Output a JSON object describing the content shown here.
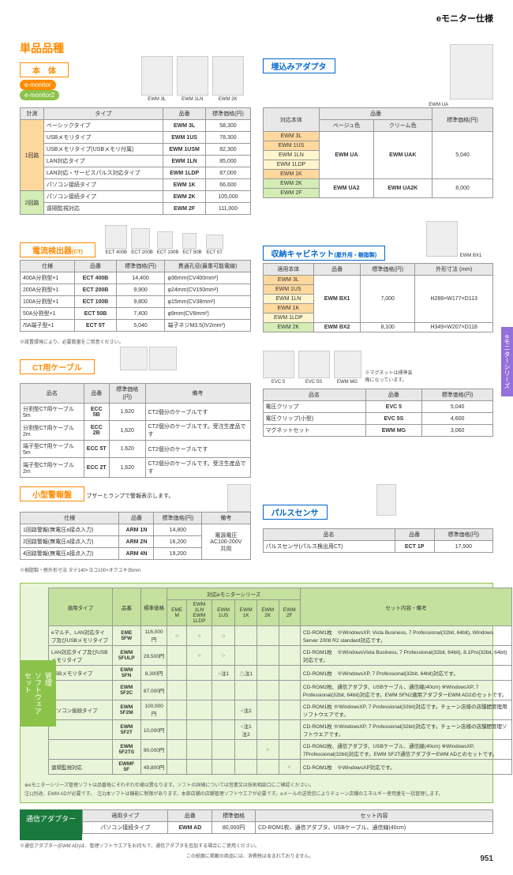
{
  "header": "eモニター仕様",
  "main_title": "単品品種",
  "honbatai": "本　体",
  "badge1": "e-monitor",
  "badge2": "e-monitor2",
  "embed_adapter": "埋込みアダプタ",
  "main_imgs": [
    "EWM 3L",
    "EWM 1LN",
    "EWM 2K"
  ],
  "adapter_img": "EWM UA",
  "main_table": {
    "headers": [
      "計測",
      "タイプ",
      "品番",
      "標準価格(円)"
    ],
    "rows": [
      [
        "1回路",
        "ベーシックタイプ",
        "EWM 3L",
        "58,300"
      ],
      [
        "",
        "USBメモリタイプ",
        "EWM 1US",
        "78,300"
      ],
      [
        "",
        "USBメモリタイプ(USBメモリ付属)",
        "EWM 1USM",
        "82,300"
      ],
      [
        "",
        "LAN対応タイプ",
        "EWM 1LN",
        "85,000"
      ],
      [
        "",
        "LAN対応・サービスパルス対応タイプ",
        "EWM 1LDP",
        "87,000"
      ],
      [
        "",
        "パソコン接続タイプ",
        "EWM 1K",
        "66,600"
      ],
      [
        "2回路",
        "パソコン接続タイプ",
        "EWM 2K",
        "105,000"
      ],
      [
        "",
        "遠隔監視対応",
        "EWM 2F",
        "111,000"
      ]
    ]
  },
  "adapter_table": {
    "headers": [
      "対応本体",
      "品番",
      "",
      "標準価格(円)"
    ],
    "sub": [
      "",
      "ベージュ色",
      "クリーム色",
      ""
    ],
    "rows": [
      [
        [
          "EWM 3L",
          "EWM 1US",
          "EWM 1LN",
          "EWM 1LDP",
          "EWM 1K"
        ],
        "EWM UA",
        "EWM UAK",
        "5,040"
      ],
      [
        [
          "EWM 2K",
          "EWM 2F"
        ],
        "EWM UA2",
        "EWM UA2K",
        "8,000"
      ]
    ]
  },
  "ct_title": "電流検出器",
  "ct_sub": "(CT)",
  "ct_imgs": [
    "ECT 400B",
    "ECT 200B",
    "ECT 100B",
    "ECT 50B",
    "ECT 5T"
  ],
  "ct_table": {
    "headers": [
      "仕様",
      "品番",
      "標準価格(円)",
      "貫通孔径(最重可能電線)"
    ],
    "rows": [
      [
        "400A分割型×1",
        "ECT 400B",
        "14,400",
        "φ36mm(CV400mm²)"
      ],
      [
        "200A分割型×1",
        "ECT 200B",
        "9,900",
        "φ24mm(CV150mm²)"
      ],
      [
        "100A分割型×1",
        "ECT 100B",
        "9,800",
        "φ15mm(CV38mm²)"
      ],
      [
        "50A分割型×1",
        "ECT 50B",
        "7,400",
        "φ9mm(CV8mm²)"
      ],
      [
        "/5A端子型×1",
        "ECT 5T",
        "5,040",
        "端子ネジM3.5(IV2mm²)"
      ]
    ]
  },
  "ct_note": "※設置環境により、必要数量をご用意ください。",
  "cabinet_title": "収納キャビネット",
  "cabinet_sub": "(屋外用・樹脂製)",
  "cabinet_img": "EWM BX1",
  "cabinet_table": {
    "headers": [
      "適用本体",
      "品番",
      "標準価格(円)",
      "外形寸法 (mm)"
    ],
    "rows": [
      [
        [
          "EWM 3L",
          "EWM 1US",
          "EWM 1LN",
          "EWM 1K",
          "EWM 1LDP"
        ],
        "EWM BX1",
        "7,000",
        "H288×W177×D113"
      ],
      [
        [
          "EWM 2K"
        ],
        "EWM BX2",
        "8,100",
        "H349×W207×D118"
      ]
    ]
  },
  "cable_title": "CT用ケーブル",
  "cable_table": {
    "headers": [
      "品名",
      "品番",
      "標準価格(円)",
      "備考"
    ],
    "rows": [
      [
        "分割型CT用ケーブル 5m",
        "ECC 5B",
        "1,620",
        "CT2個分のケーブルです"
      ],
      [
        "分割型CT用ケーブル 2m",
        "ECC 2B",
        "1,620",
        "CT2個分のケーブルです。受注生産品です"
      ],
      [
        "端子型CT用ケーブル 5m",
        "ECC 5T",
        "1,620",
        "CT2個分のケーブルです"
      ],
      [
        "端子型CT用ケーブル 2m",
        "ECC 2T",
        "1,620",
        "CT2個分のケーブルです。受注生産品です"
      ]
    ]
  },
  "evc_imgs": [
    "EVC 5",
    "EVC 5S",
    "EWM MG"
  ],
  "evc_note": "※マグネットは標準装備になっています。",
  "evc_table": {
    "headers": [
      "品名",
      "品番",
      "標準価格(円)"
    ],
    "rows": [
      [
        "電圧クリップ",
        "EVC 5",
        "5,040"
      ],
      [
        "電圧クリップ(小型)",
        "EVC 5S",
        "4,600"
      ],
      [
        "マグネットセット",
        "EWM MG",
        "3,060"
      ]
    ]
  },
  "alarm_title": "小型警報盤",
  "alarm_desc": "ブザーとランプで警報表示します。",
  "alarm_table": {
    "headers": [
      "仕様",
      "品番",
      "標準価格(円)",
      "備考"
    ],
    "rows": [
      [
        "1回路警報(無電圧a接点入力)",
        "ARM 1N",
        "14,800",
        "電源電圧\nAC100-200V\n共用"
      ],
      [
        "2回路警報(無電圧a接点入力)",
        "ARM 2N",
        "16,200",
        ""
      ],
      [
        "4回路警報(無電圧a接点入力)",
        "ARM 4N",
        "19,200",
        ""
      ]
    ]
  },
  "alarm_note": "※樹脂製・熱外形寸法 タテ140×ヨコ100×オクユキ35mm",
  "pulse_title": "パルスセンサ",
  "pulse_table": {
    "headers": [
      "品名",
      "品番",
      "標準価格(円)"
    ],
    "rows": [
      [
        "パルスセンサ(パルス検出用CT)",
        "ECT 1P",
        "17,500"
      ]
    ]
  },
  "software_label": "管理\nソフトウェア\nセット",
  "software_table": {
    "headers": [
      "適用タイプ",
      "品番",
      "標準価格",
      "EME M",
      "EWM 1LN\nEWM 1LDP",
      "EWM 1US",
      "EWM 1K",
      "EWM 2K",
      "EWM 2F",
      "セット内容・備考"
    ],
    "series_header": "対応eモニターシリーズ",
    "rows": [
      [
        "eマルチ、LAN対応タイプ及びUSBメモリタイプ",
        "EME 5FW",
        "116,000円",
        "○",
        "○",
        "○",
        "",
        "",
        "",
        "CD-ROM1枚　※WindowsXP, Vista Business, 7 Professional(32bit, 64bit), Windows Server 2008 R2 standard対応です。"
      ],
      [
        "LAN対応タイプ及びUSBメモリタイプ",
        "EWM 5FULP",
        "29,500円",
        "",
        "○",
        "○",
        "",
        "",
        "",
        "CD-ROM1枚　※WindowsVista Business, 7 Professional(32bit, 64bit), 8.1Pro(32bit, 64bit)対応です。"
      ],
      [
        "USBメモリタイプ",
        "EWM 5FN",
        "8,300円",
        "",
        "",
        "○注1",
        "△注1",
        "",
        "",
        "CD-ROM1枚　※WindowsXP, 7 Professional(32bit, 64bit)対応です。"
      ],
      [
        "",
        "EWM 5F2C",
        "87,000円",
        "",
        "",
        "",
        "",
        "",
        "",
        "CD-ROM2枚、通信アダプタ、USBケーブル、通信線(40cm) ※WindowsXP, 7 Professional(32bit, 64bit)対応です。EWM SFN2適用アダプターEWM AD2のセットです。"
      ],
      [
        "パソコン接続タイプ",
        "EWM 5F2M",
        "100,000円",
        "",
        "",
        "",
        "○注2",
        "",
        "",
        "CD-ROM1枚 ※WindowsXP, 7 Professional(32bit)対応です。チェーン店様の店舗間管理用ソフトウエアです。"
      ],
      [
        "",
        "EWM 5F2T",
        "10,000円",
        "",
        "",
        "",
        "○注1\n注2",
        "",
        "",
        "CD-ROM1枚 ※WindowsXP, 7 Professional(32bit)対応です。チェーン店様の店舗間管理ソフトウエアです。"
      ],
      [
        "",
        "EWM 5F2TS",
        "90,000円",
        "",
        "",
        "",
        "",
        "○",
        "",
        "CD-ROM2枚、通信アダプタ、USBケーブル、通信線(40cm) ※WindowsXP, 7Professional(32bit)対応です。EWM SF2T通信アダプターEWM ADとのセットです。"
      ],
      [
        "遠隔監視対応",
        "EWMF 5F",
        "49,800円",
        "",
        "",
        "",
        "",
        "",
        "○",
        "CD-ROM1枚　※WindowsXP対応です。"
      ]
    ]
  },
  "software_notes": [
    "※eモニターシリーズ管理ソフトは品番毎にそれぞれ仕様は異なります。ソフトの詳細については営業又は技術相談口にご確認ください。",
    "注1)別途、EWM ADが必要です。　注2)本ソフトは機能に制限があります。本部店舗の店舗管理ソフトウエアが必要です。eメールの送受信によりチェーン店舗のエネルギー使用量を一括管理します。"
  ],
  "comm_adapter": "通信アダプター",
  "comm_table": {
    "headers": [
      "適用タイプ",
      "品番",
      "標準価格",
      "セット内容"
    ],
    "rows": [
      [
        "パソコン接続タイプ",
        "EWM AD",
        "80,000円",
        "CD-ROM1枚、通信アダプタ、USBケーブル、通信線(40cm)"
      ]
    ]
  },
  "comm_note": "※通信アダプター(EWM AD)は、管理ソフトウエアをお持ちで、通信アダプタを追加する場合にご使用ください。",
  "bottom_note": "この紙面に掲載の商品には、消費税は含まれておりません。",
  "page": "951",
  "side": "eモニターシリーズ"
}
